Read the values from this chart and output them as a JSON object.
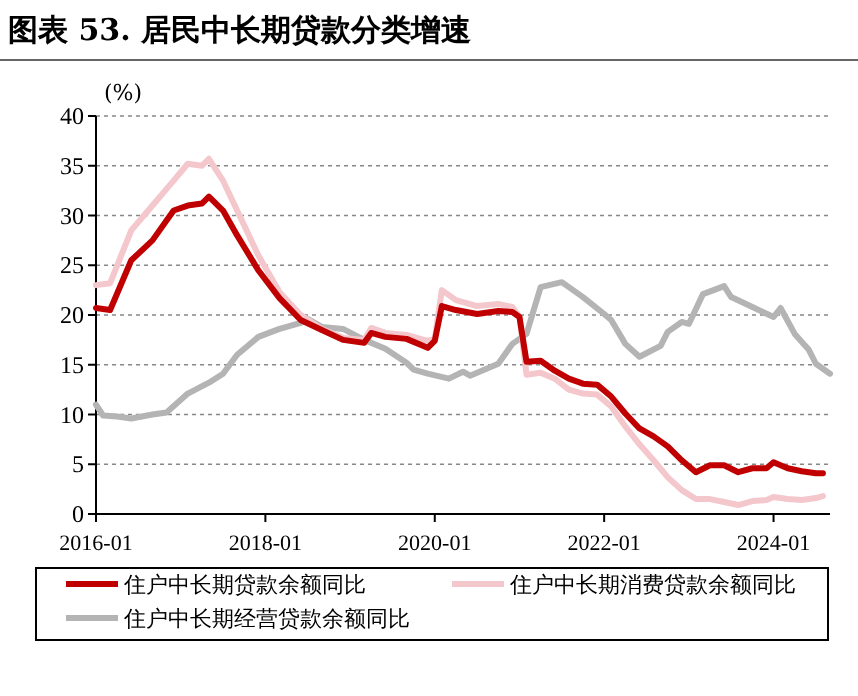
{
  "chart_data": {
    "type": "line",
    "title": "图表 53. 居民中长期贷款分类增速",
    "ylabel": "(%)",
    "xlim": [
      "2016-01",
      "2024-09"
    ],
    "xticks": [
      "2016-01",
      "2018-01",
      "2020-01",
      "2022-01",
      "2024-01"
    ],
    "ylim": [
      0,
      40
    ],
    "yticks": [
      0,
      5,
      10,
      15,
      20,
      25,
      30,
      35,
      40
    ],
    "grid": "y",
    "legend": "bottom",
    "line_style": "solid",
    "marker": "none",
    "series": [
      {
        "name": "住户中长期贷款余额同比",
        "color": "#c00000",
        "x": [
          "2016-01",
          "2016-03",
          "2016-06",
          "2016-09",
          "2016-12",
          "2017-02",
          "2017-04",
          "2017-05",
          "2017-07",
          "2017-09",
          "2017-12",
          "2018-03",
          "2018-06",
          "2018-09",
          "2018-12",
          "2019-03",
          "2019-04",
          "2019-06",
          "2019-09",
          "2019-12",
          "2020-01",
          "2020-02",
          "2020-04",
          "2020-07",
          "2020-10",
          "2020-12",
          "2021-01",
          "2021-02",
          "2021-04",
          "2021-06",
          "2021-08",
          "2021-10",
          "2021-12",
          "2022-02",
          "2022-04",
          "2022-06",
          "2022-08",
          "2022-10",
          "2022-12",
          "2023-02",
          "2023-04",
          "2023-06",
          "2023-08",
          "2023-10",
          "2023-12",
          "2024-01",
          "2024-03",
          "2024-05",
          "2024-07",
          "2024-08"
        ],
        "values": [
          20.7,
          20.5,
          25.5,
          27.5,
          30.5,
          31.0,
          31.2,
          31.9,
          30.5,
          28,
          24.5,
          21.7,
          19.5,
          18.5,
          17.5,
          17.2,
          18.2,
          17.8,
          17.6,
          16.7,
          17.4,
          20.9,
          20.5,
          20.1,
          20.4,
          20.3,
          19.8,
          15.3,
          15.4,
          14.4,
          13.6,
          13.1,
          13.0,
          11.8,
          10.1,
          8.6,
          7.8,
          6.8,
          5.4,
          4.2,
          4.9,
          4.9,
          4.2,
          4.6,
          4.6,
          5.2,
          4.6,
          4.3,
          4.1,
          4.1
        ]
      },
      {
        "name": "住户中长期消费贷款余额同比",
        "color": "#f4c7cc",
        "x": [
          "2016-01",
          "2016-03",
          "2016-06",
          "2016-09",
          "2016-12",
          "2017-02",
          "2017-04",
          "2017-05",
          "2017-07",
          "2017-09",
          "2017-12",
          "2018-03",
          "2018-06",
          "2018-09",
          "2018-12",
          "2019-03",
          "2019-04",
          "2019-06",
          "2019-09",
          "2019-12",
          "2020-01",
          "2020-02",
          "2020-04",
          "2020-07",
          "2020-10",
          "2020-12",
          "2021-01",
          "2021-02",
          "2021-04",
          "2021-06",
          "2021-08",
          "2021-10",
          "2021-12",
          "2022-02",
          "2022-04",
          "2022-06",
          "2022-08",
          "2022-10",
          "2022-12",
          "2023-02",
          "2023-04",
          "2023-06",
          "2023-08",
          "2023-10",
          "2023-12",
          "2024-01",
          "2024-03",
          "2024-05",
          "2024-07",
          "2024-08"
        ],
        "values": [
          23.0,
          23.2,
          28.5,
          31,
          33.5,
          35.2,
          35.0,
          35.7,
          33.5,
          30.5,
          26,
          22.3,
          20,
          18.6,
          17.7,
          17.5,
          18.7,
          18.2,
          18.0,
          17.4,
          17.6,
          22.5,
          21.5,
          20.9,
          21.1,
          20.8,
          19.8,
          14.0,
          14.2,
          13.6,
          12.5,
          12.1,
          12.0,
          10.8,
          8.8,
          7,
          5.4,
          3.7,
          2.4,
          1.5,
          1.5,
          1.2,
          0.9,
          1.3,
          1.4,
          1.7,
          1.5,
          1.4,
          1.6,
          1.8
        ]
      },
      {
        "name": "住户中长期经营贷款余额同比",
        "color": "#b4b4b4",
        "x": [
          "2016-01",
          "2016-02",
          "2016-04",
          "2016-06",
          "2016-09",
          "2016-11",
          "2017-02",
          "2017-05",
          "2017-07",
          "2017-09",
          "2017-12",
          "2018-03",
          "2018-06",
          "2018-07",
          "2018-09",
          "2018-12",
          "2019-03",
          "2019-06",
          "2019-09",
          "2019-10",
          "2019-12",
          "2020-03",
          "2020-05",
          "2020-06",
          "2020-10",
          "2020-12",
          "2021-02",
          "2021-04",
          "2021-07",
          "2021-10",
          "2022-01",
          "2022-02",
          "2022-04",
          "2022-06",
          "2022-09",
          "2022-10",
          "2022-12",
          "2023-01",
          "2023-03",
          "2023-06",
          "2023-07",
          "2023-10",
          "2024-01",
          "2024-02",
          "2024-04",
          "2024-06",
          "2024-07",
          "2024-09"
        ],
        "values": [
          11.0,
          9.9,
          9.8,
          9.6,
          10.0,
          10.2,
          12.1,
          13.2,
          14.1,
          16,
          17.8,
          18.6,
          19.2,
          19.6,
          18.8,
          18.6,
          17.5,
          16.6,
          15.2,
          14.5,
          14.1,
          13.6,
          14.3,
          13.9,
          15.1,
          17.1,
          18.1,
          22.8,
          23.3,
          21.8,
          20.1,
          19.5,
          17.1,
          15.8,
          16.9,
          18.3,
          19.3,
          19.1,
          22.1,
          22.9,
          21.8,
          20.8,
          19.8,
          20.7,
          18.1,
          16.5,
          15.1,
          14.1
        ]
      }
    ]
  }
}
